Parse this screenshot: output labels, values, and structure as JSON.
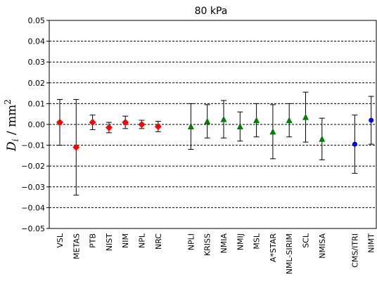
{
  "chart_data": {
    "type": "scatter",
    "title": "80 kPa",
    "ylabel": "Di / mm2",
    "ylabel_parts": {
      "symbol": "D",
      "subscript": "i",
      "unit": " / mm",
      "superscript": "2"
    },
    "ylim": [
      -0.05,
      0.05
    ],
    "yticks": [
      -0.05,
      -0.04,
      -0.03,
      -0.02,
      -0.01,
      0.0,
      0.01,
      0.02,
      0.03,
      0.04,
      0.05
    ],
    "ytick_labels": [
      "−0.05",
      "−0.04",
      "−0.03",
      "−0.02",
      "−0.01",
      "0.00",
      "0.01",
      "0.02",
      "0.03",
      "0.04",
      "0.05"
    ],
    "grid": "horizontal dashed",
    "groups": [
      {
        "marker": "diamond",
        "color": "#ff0000",
        "points": [
          {
            "label": "VSL",
            "value": 0.001,
            "err": 0.011
          },
          {
            "label": "METAS",
            "value": -0.011,
            "err": 0.023
          },
          {
            "label": "PTB",
            "value": 0.001,
            "err": 0.0035
          },
          {
            "label": "NIST",
            "value": -0.0015,
            "err": 0.0025
          },
          {
            "label": "NIM",
            "value": 0.001,
            "err": 0.003
          },
          {
            "label": "NPL",
            "value": 0.0,
            "err": 0.002
          },
          {
            "label": "NRC",
            "value": -0.001,
            "err": 0.0025
          }
        ]
      },
      {
        "marker": "triangle",
        "color": "#008000",
        "points": [
          {
            "label": "NPLI",
            "value": -0.001,
            "err": 0.011
          },
          {
            "label": "KRISS",
            "value": 0.0015,
            "err": 0.008
          },
          {
            "label": "NMIA",
            "value": 0.0025,
            "err": 0.009
          },
          {
            "label": "NMIJ",
            "value": -0.001,
            "err": 0.007
          },
          {
            "label": "MSL",
            "value": 0.002,
            "err": 0.008
          },
          {
            "label": "A*STAR",
            "value": -0.0035,
            "err": 0.013
          },
          {
            "label": "NML-SIRIM",
            "value": 0.002,
            "err": 0.008
          },
          {
            "label": "SCL",
            "value": 0.0035,
            "err": 0.012
          },
          {
            "label": "NMISA",
            "value": -0.007,
            "err": 0.01
          }
        ]
      },
      {
        "marker": "circle",
        "color": "#0000ff",
        "points": [
          {
            "label": "CMS/ITRI",
            "value": -0.0095,
            "err": 0.014
          },
          {
            "label": "NIMT",
            "value": 0.002,
            "err": 0.0115
          }
        ]
      }
    ]
  }
}
